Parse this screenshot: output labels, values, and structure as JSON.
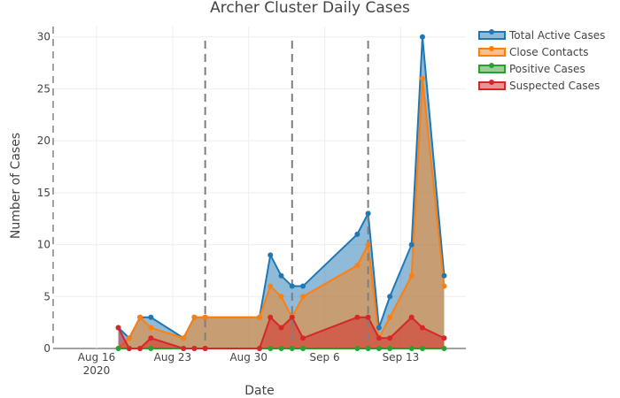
{
  "chart_data": {
    "type": "area",
    "title": "Archer Cluster Daily Cases",
    "xlabel": "Date",
    "ylabel": "Number of Cases",
    "xlim": [
      "2020-08-12",
      "2020-09-19"
    ],
    "ylim": [
      0,
      31
    ],
    "x_ticks": [
      {
        "date": "2020-08-16",
        "label": "Aug 16",
        "sublabel": "2020"
      },
      {
        "date": "2020-08-23",
        "label": "Aug 23",
        "sublabel": ""
      },
      {
        "date": "2020-08-30",
        "label": "Aug 30",
        "sublabel": ""
      },
      {
        "date": "2020-09-06",
        "label": "Sep 6",
        "sublabel": ""
      },
      {
        "date": "2020-09-13",
        "label": "Sep 13",
        "sublabel": ""
      }
    ],
    "y_ticks": [
      0,
      5,
      10,
      15,
      20,
      25,
      30
    ],
    "grid": true,
    "legend_position": "top-right",
    "vertical_markers": [
      "2020-08-26",
      "2020-09-03",
      "2020-09-10"
    ],
    "series": [
      {
        "name": "Total Active Cases",
        "color": "#1f77b4",
        "points": [
          [
            "2020-08-18",
            2
          ],
          [
            "2020-08-19",
            1
          ],
          [
            "2020-08-20",
            3
          ],
          [
            "2020-08-21",
            3
          ],
          [
            "2020-08-24",
            1
          ],
          [
            "2020-08-25",
            3
          ],
          [
            "2020-08-26",
            3
          ],
          [
            "2020-08-31",
            3
          ],
          [
            "2020-09-01",
            9
          ],
          [
            "2020-09-02",
            7
          ],
          [
            "2020-09-03",
            6
          ],
          [
            "2020-09-04",
            6
          ],
          [
            "2020-09-09",
            11
          ],
          [
            "2020-09-10",
            13
          ],
          [
            "2020-09-11",
            2
          ],
          [
            "2020-09-12",
            5
          ],
          [
            "2020-09-14",
            10
          ],
          [
            "2020-09-15",
            30
          ],
          [
            "2020-09-17",
            7
          ]
        ]
      },
      {
        "name": "Close Contacts",
        "color": "#ff7f0e",
        "points": [
          [
            "2020-08-18",
            0
          ],
          [
            "2020-08-19",
            1
          ],
          [
            "2020-08-20",
            3
          ],
          [
            "2020-08-21",
            2
          ],
          [
            "2020-08-24",
            1
          ],
          [
            "2020-08-25",
            3
          ],
          [
            "2020-08-26",
            3
          ],
          [
            "2020-08-31",
            3
          ],
          [
            "2020-09-01",
            6
          ],
          [
            "2020-09-02",
            5
          ],
          [
            "2020-09-03",
            3
          ],
          [
            "2020-09-04",
            5
          ],
          [
            "2020-09-09",
            8
          ],
          [
            "2020-09-10",
            10
          ],
          [
            "2020-09-11",
            1
          ],
          [
            "2020-09-12",
            3
          ],
          [
            "2020-09-14",
            7
          ],
          [
            "2020-09-15",
            26
          ],
          [
            "2020-09-17",
            6
          ]
        ]
      },
      {
        "name": "Positive Cases",
        "color": "#2ca02c",
        "points": [
          [
            "2020-08-18",
            0
          ],
          [
            "2020-08-19",
            0
          ],
          [
            "2020-08-20",
            0
          ],
          [
            "2020-08-21",
            0
          ],
          [
            "2020-08-24",
            0
          ],
          [
            "2020-08-25",
            0
          ],
          [
            "2020-08-26",
            0
          ],
          [
            "2020-08-31",
            0
          ],
          [
            "2020-09-01",
            0
          ],
          [
            "2020-09-02",
            0
          ],
          [
            "2020-09-03",
            0
          ],
          [
            "2020-09-04",
            0
          ],
          [
            "2020-09-09",
            0
          ],
          [
            "2020-09-10",
            0
          ],
          [
            "2020-09-11",
            0
          ],
          [
            "2020-09-12",
            0
          ],
          [
            "2020-09-14",
            0
          ],
          [
            "2020-09-15",
            0
          ],
          [
            "2020-09-17",
            0
          ]
        ]
      },
      {
        "name": "Suspected Cases",
        "color": "#d62728",
        "points": [
          [
            "2020-08-18",
            2
          ],
          [
            "2020-08-19",
            0
          ],
          [
            "2020-08-20",
            0
          ],
          [
            "2020-08-21",
            1
          ],
          [
            "2020-08-24",
            0
          ],
          [
            "2020-08-25",
            0
          ],
          [
            "2020-08-26",
            0
          ],
          [
            "2020-08-31",
            0
          ],
          [
            "2020-09-01",
            3
          ],
          [
            "2020-09-02",
            2
          ],
          [
            "2020-09-03",
            3
          ],
          [
            "2020-09-04",
            1
          ],
          [
            "2020-09-09",
            3
          ],
          [
            "2020-09-10",
            3
          ],
          [
            "2020-09-11",
            1
          ],
          [
            "2020-09-12",
            1
          ],
          [
            "2020-09-14",
            3
          ],
          [
            "2020-09-15",
            2
          ],
          [
            "2020-09-17",
            1
          ]
        ]
      }
    ]
  }
}
